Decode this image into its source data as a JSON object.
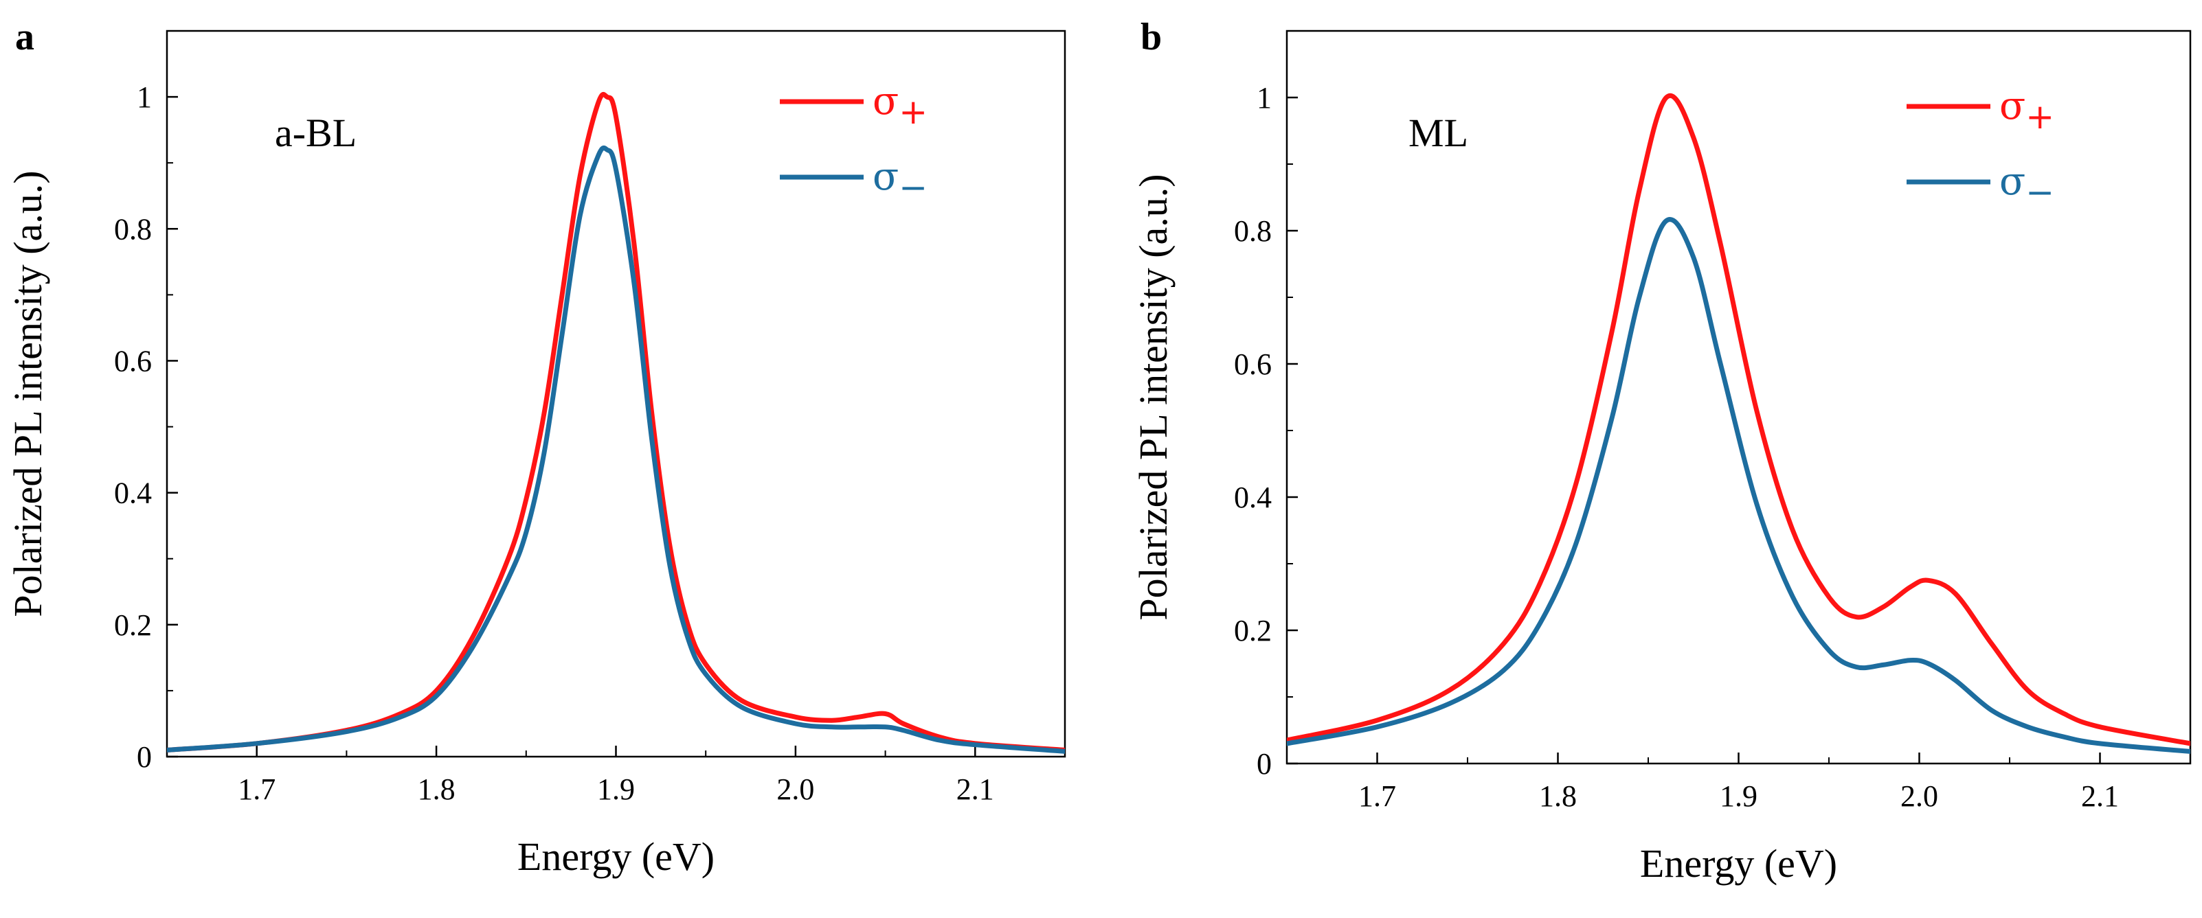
{
  "chart_data": [
    {
      "type": "line",
      "panel_label": "a",
      "annotation": "a-BL",
      "xlabel": "Energy (eV)",
      "ylabel": "Polarized PL intensity (a.u.)",
      "xlim": [
        1.65,
        2.15
      ],
      "ylim": [
        0,
        1.1
      ],
      "xticks": [
        1.7,
        1.8,
        1.9,
        2.0,
        2.1
      ],
      "xtick_labels": [
        "1.7",
        "1.8",
        "1.9",
        "2.0",
        "2.1"
      ],
      "yticks": [
        0,
        0.2,
        0.4,
        0.6,
        0.8,
        1.0
      ],
      "ytick_labels": [
        "0",
        "0.2",
        "0.4",
        "0.6",
        "0.8",
        "1"
      ],
      "legend_position": "top-right",
      "series": [
        {
          "name": "σ+",
          "symbol": "σ",
          "subscript": "+",
          "color": "#ff1414",
          "x": [
            1.65,
            1.7,
            1.75,
            1.78,
            1.8,
            1.82,
            1.84,
            1.85,
            1.86,
            1.87,
            1.88,
            1.89,
            1.895,
            1.9,
            1.91,
            1.92,
            1.93,
            1.94,
            1.95,
            1.97,
            2.0,
            2.02,
            2.035,
            2.05,
            2.06,
            2.08,
            2.1,
            2.15
          ],
          "y": [
            0.01,
            0.02,
            0.04,
            0.065,
            0.1,
            0.18,
            0.3,
            0.39,
            0.52,
            0.7,
            0.88,
            0.99,
            1.0,
            0.97,
            0.78,
            0.52,
            0.32,
            0.2,
            0.14,
            0.085,
            0.06,
            0.055,
            0.06,
            0.065,
            0.05,
            0.03,
            0.02,
            0.01
          ]
        },
        {
          "name": "σ−",
          "symbol": "σ",
          "subscript": "−",
          "color": "#1d6d9f",
          "x": [
            1.65,
            1.7,
            1.75,
            1.78,
            1.8,
            1.82,
            1.84,
            1.85,
            1.86,
            1.87,
            1.88,
            1.89,
            1.895,
            1.9,
            1.91,
            1.92,
            1.93,
            1.94,
            1.95,
            1.97,
            2.0,
            2.02,
            2.035,
            2.05,
            2.06,
            2.08,
            2.1,
            2.15
          ],
          "y": [
            0.01,
            0.02,
            0.038,
            0.06,
            0.092,
            0.165,
            0.27,
            0.34,
            0.46,
            0.64,
            0.82,
            0.91,
            0.92,
            0.89,
            0.72,
            0.48,
            0.29,
            0.18,
            0.125,
            0.075,
            0.05,
            0.045,
            0.045,
            0.045,
            0.04,
            0.025,
            0.018,
            0.008
          ]
        }
      ]
    },
    {
      "type": "line",
      "panel_label": "b",
      "annotation": "ML",
      "xlabel": "Energy (eV)",
      "ylabel": "Polarized PL intensity (a.u.)",
      "xlim": [
        1.65,
        2.15
      ],
      "ylim": [
        0,
        1.1
      ],
      "xticks": [
        1.7,
        1.8,
        1.9,
        2.0,
        2.1
      ],
      "xtick_labels": [
        "1.7",
        "1.8",
        "1.9",
        "2.0",
        "2.1"
      ],
      "yticks": [
        0,
        0.2,
        0.4,
        0.6,
        0.8,
        1.0
      ],
      "ytick_labels": [
        "0",
        "0.2",
        "0.4",
        "0.6",
        "0.8",
        "1"
      ],
      "legend_position": "top-right",
      "series": [
        {
          "name": "σ+",
          "symbol": "σ",
          "subscript": "+",
          "color": "#ff1414",
          "x": [
            1.65,
            1.7,
            1.74,
            1.77,
            1.79,
            1.81,
            1.83,
            1.845,
            1.86,
            1.875,
            1.89,
            1.91,
            1.93,
            1.95,
            1.965,
            1.98,
            1.995,
            2.005,
            2.02,
            2.04,
            2.06,
            2.08,
            2.1,
            2.15
          ],
          "y": [
            0.035,
            0.065,
            0.11,
            0.18,
            0.27,
            0.42,
            0.65,
            0.86,
            1.0,
            0.94,
            0.78,
            0.53,
            0.35,
            0.25,
            0.22,
            0.235,
            0.265,
            0.275,
            0.255,
            0.18,
            0.11,
            0.075,
            0.055,
            0.03
          ]
        },
        {
          "name": "σ−",
          "symbol": "σ",
          "subscript": "−",
          "color": "#1d6d9f",
          "x": [
            1.65,
            1.7,
            1.74,
            1.77,
            1.79,
            1.81,
            1.83,
            1.845,
            1.86,
            1.875,
            1.89,
            1.91,
            1.93,
            1.95,
            1.965,
            1.98,
            1.995,
            2.005,
            2.02,
            2.04,
            2.06,
            2.08,
            2.1,
            2.15
          ],
          "y": [
            0.03,
            0.055,
            0.09,
            0.14,
            0.21,
            0.33,
            0.52,
            0.7,
            0.815,
            0.76,
            0.6,
            0.39,
            0.25,
            0.17,
            0.145,
            0.148,
            0.155,
            0.15,
            0.125,
            0.08,
            0.055,
            0.04,
            0.03,
            0.018
          ]
        }
      ]
    }
  ]
}
